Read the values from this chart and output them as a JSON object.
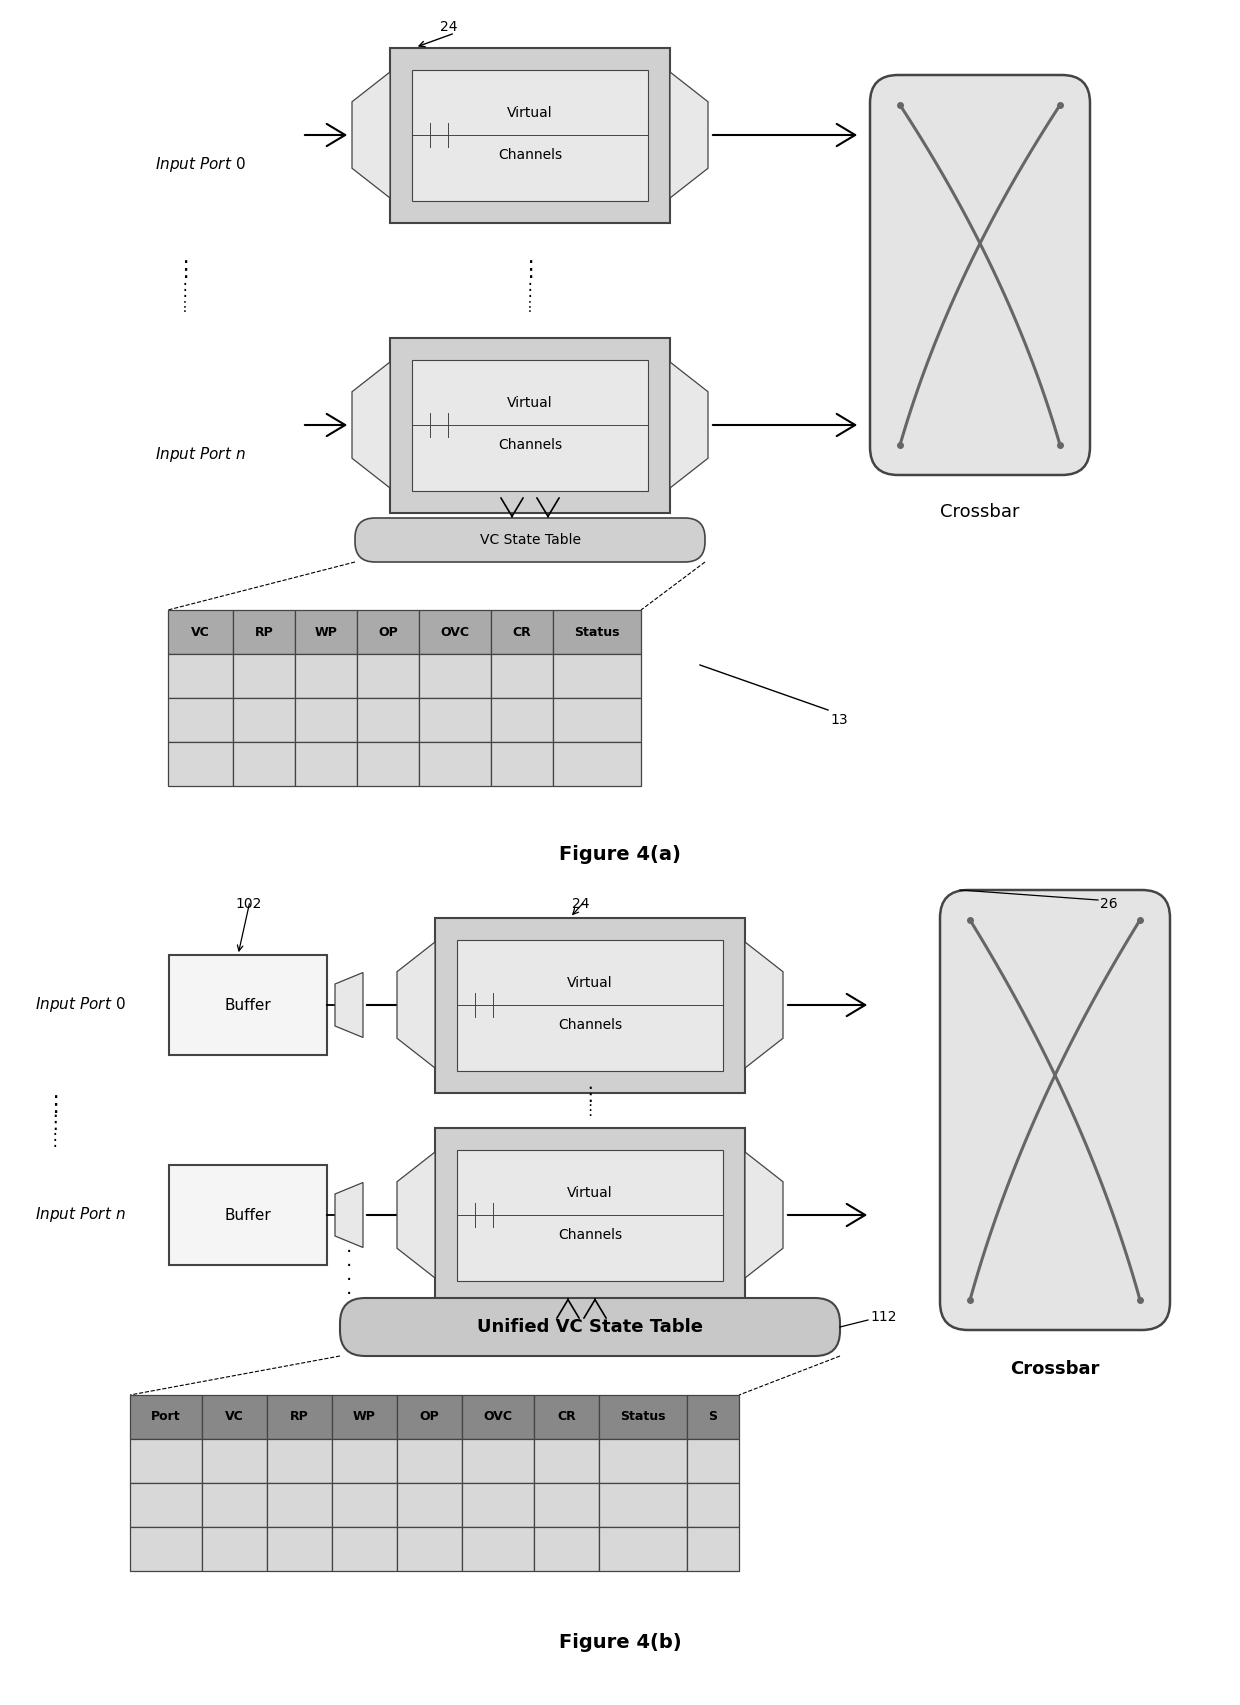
{
  "fig_width": 12.4,
  "fig_height": 17.05,
  "bg_color": "#ffffff",
  "fig4a_title": "Figure 4(a)",
  "fig4b_title": "Figure 4(b)",
  "table_a_headers": [
    "VC",
    "RP",
    "WP",
    "OP",
    "OVC",
    "CR",
    "Status"
  ],
  "table_b_headers": [
    "Port",
    "VC",
    "RP",
    "WP",
    "OP",
    "OVC",
    "CR",
    "Status",
    "S"
  ],
  "header_bg_a": "#aaaaaa",
  "header_bg_b": "#888888",
  "cell_bg": "#d8d8d8",
  "vc_box_fill": "#d0d0d0",
  "vc_inner_fill": "#e8e8e8",
  "crossbar_fill": "#e4e4e4",
  "buffer_fill": "#f5f5f5",
  "vcs_pill_fill": "#d0d0d0",
  "uvcs_pill_fill": "#c8c8c8",
  "edge_color": "#444444",
  "text_color": "#000000",
  "label_24a": "24",
  "label_13": "13",
  "label_102": "102",
  "label_24b": "24",
  "label_26": "26",
  "label_112": "112"
}
